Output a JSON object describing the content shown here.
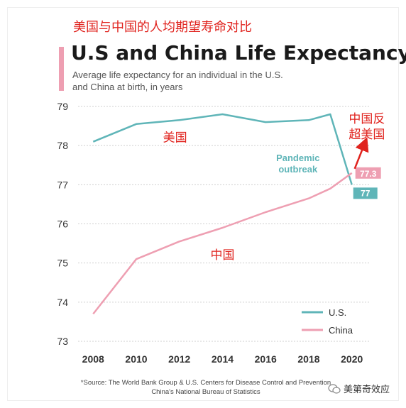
{
  "header": {
    "cn_title": "美国与中国的人均期望寿命对比",
    "title": "U.S and China Life Expectancy",
    "subtitle": "Average life expectancy for an individual in the U.S. and China at birth, in years"
  },
  "chart_data": {
    "type": "line",
    "title": "U.S and China Life Expectancy",
    "subtitle": "Average life expectancy for an individual in the U.S. and China at birth, in years",
    "xlabel": "",
    "ylabel": "",
    "xlim": [
      2007.3,
      2020.8
    ],
    "ylim": [
      73,
      79
    ],
    "x_ticks": [
      2008,
      2010,
      2012,
      2014,
      2016,
      2018,
      2020
    ],
    "y_ticks": [
      73,
      74,
      75,
      76,
      77,
      78,
      79
    ],
    "grid": true,
    "legend_position": "bottom-right",
    "series": [
      {
        "name": "U.S.",
        "color": "#5fb5b8",
        "x": [
          2008,
          2010,
          2012,
          2014,
          2016,
          2018,
          2019,
          2020
        ],
        "y": [
          78.1,
          78.55,
          78.65,
          78.8,
          78.6,
          78.65,
          78.8,
          77
        ]
      },
      {
        "name": "China",
        "color": "#ee9fb2",
        "x": [
          2008,
          2010,
          2012,
          2014,
          2016,
          2018,
          2019,
          2020
        ],
        "y": [
          73.7,
          75.1,
          75.55,
          75.9,
          76.3,
          76.65,
          76.9,
          77.3
        ]
      }
    ],
    "annotations": [
      {
        "text": "Pandemic",
        "color": "#5fb5b8"
      },
      {
        "text": "outbreak",
        "color": "#5fb5b8"
      },
      {
        "text": "美国",
        "color": "#e0231e"
      },
      {
        "text": "中国",
        "color": "#e0231e"
      },
      {
        "text": "中国反",
        "color": "#e0231e"
      },
      {
        "text": "超美国",
        "color": "#e0231e"
      }
    ],
    "value_labels": [
      {
        "text": "77.3",
        "color": "#ee9fb2"
      },
      {
        "text": "77",
        "color": "#5fb5b8"
      }
    ]
  },
  "source": {
    "line1": "*Source: The World Bank Group & U.S. Centers for Disease Control and Prevention",
    "line2": "China's National Bureau of Statistics"
  },
  "watermark": {
    "text": "美第奇效应",
    "icon": "wechat-icon"
  }
}
